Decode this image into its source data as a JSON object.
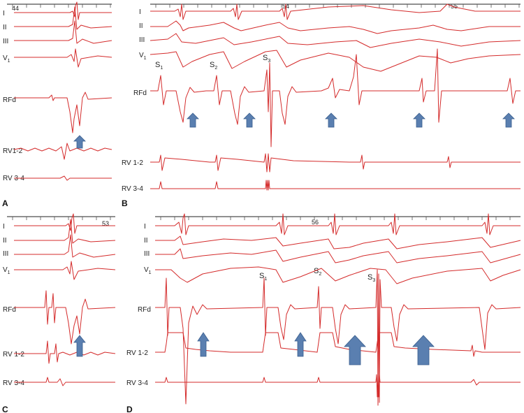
{
  "panels": [
    {
      "letter": "A",
      "strip_number": "44",
      "leads": [
        "I",
        "II",
        "III",
        "V",
        "RFd",
        "RV1-2",
        "RV 3-4"
      ],
      "v1_subscript": "1"
    },
    {
      "letter": "B",
      "strip_numbers": [
        "54",
        "55"
      ],
      "leads": [
        "I",
        "II",
        "III",
        "V",
        "RFd",
        "RV 1-2",
        "RV 3-4"
      ],
      "v1_subscript": "1",
      "beat_labels": [
        {
          "letter": "S",
          "sub": "1"
        },
        {
          "letter": "S",
          "sub": "2"
        },
        {
          "letter": "S",
          "sub": "3"
        }
      ]
    },
    {
      "letter": "C",
      "strip_number": "53",
      "leads": [
        "I",
        "II",
        "III",
        "V",
        "RFd",
        "RV 1-2",
        "RV 3-4"
      ],
      "v1_subscript": "1"
    },
    {
      "letter": "D",
      "strip_number": "56",
      "leads": [
        "I",
        "II",
        "III",
        "V",
        "RFd",
        "RV 1-2",
        "RV 3-4"
      ],
      "v1_subscript": "1",
      "beat_labels": [
        {
          "letter": "S",
          "sub": "1"
        },
        {
          "letter": "S",
          "sub": "2"
        },
        {
          "letter": "S",
          "sub": "3"
        }
      ]
    }
  ],
  "colors": {
    "trace": "#d42b2b",
    "arrow": "#5a7fb0"
  }
}
